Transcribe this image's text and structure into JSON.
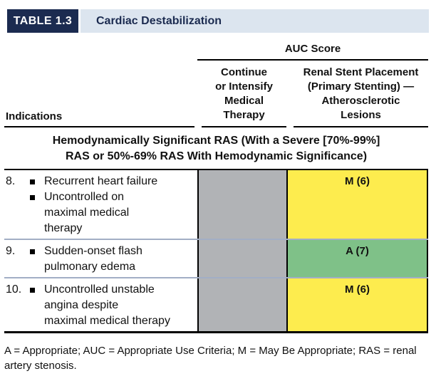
{
  "title_bar": {
    "badge": "TABLE 1.3",
    "title": "Cardiac Destabilization"
  },
  "header": {
    "auc_score": "AUC Score",
    "indications": "Indications",
    "col_medical_therapy": "Continue\nor Intensify\nMedical\nTherapy",
    "col_renal_stent": "Renal Stent Placement\n(Primary Stenting) —\nAtherosclerotic\nLesions"
  },
  "section_header": "Hemodynamically Significant RAS (With a Severe [70%-99%]\nRAS or 50%-69% RAS With Hemodynamic Significance)",
  "rows": [
    {
      "num": "8.",
      "items": [
        "Recurrent heart failure",
        "Uncontrolled on\nmaximal medical\ntherapy"
      ],
      "medical_therapy_score": "",
      "stent_score": "M (6)",
      "stent_color": "yellow"
    },
    {
      "num": "9.",
      "items": [
        "Sudden-onset flash\npulmonary edema"
      ],
      "medical_therapy_score": "",
      "stent_score": "A (7)",
      "stent_color": "green"
    },
    {
      "num": "10.",
      "items": [
        "Uncontrolled unstable\nangina despite\nmaximal medical therapy"
      ],
      "medical_therapy_score": "",
      "stent_score": "M (6)",
      "stent_color": "yellow"
    }
  ],
  "footnote": "A = Appropriate; AUC = Appropriate Use Criteria; M = May Be Appropriate; RAS = renal\nartery stenosis.",
  "colors": {
    "navy": "#1b2b50",
    "light_blue": "#dce5ef",
    "gray_cell": "#b1b3b6",
    "yellow": "#fdec4e",
    "green": "#7fc188",
    "row_divider": "#a2aec5"
  }
}
